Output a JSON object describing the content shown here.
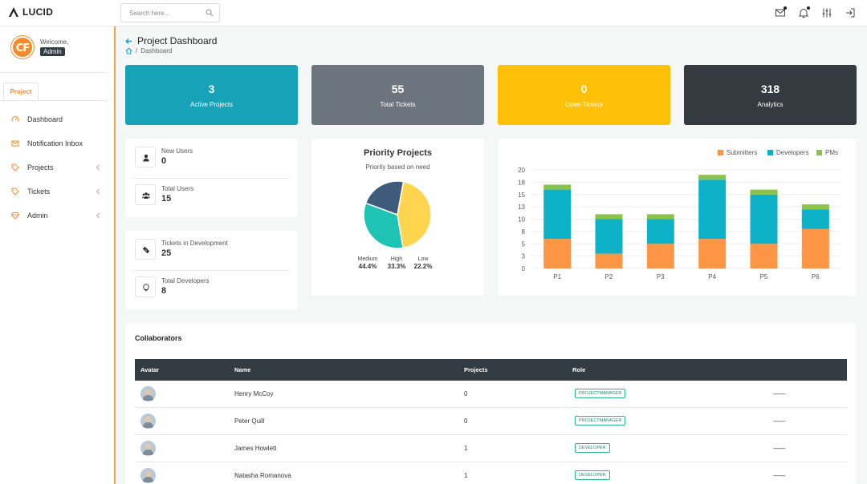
{
  "brand": {
    "name": "LUCID"
  },
  "search": {
    "placeholder": "Search here..."
  },
  "navbar_icons": [
    "mail-icon",
    "bell-icon",
    "sliders-icon",
    "logout-icon"
  ],
  "user": {
    "welcome": "Welcome,",
    "role": "Admin",
    "avatar_text": "CF"
  },
  "sidebar": {
    "tab": "Project",
    "items": [
      {
        "label": "Dashboard",
        "icon": "speedometer-icon"
      },
      {
        "label": "Notification Inbox",
        "icon": "mail-icon"
      },
      {
        "label": "Projects",
        "icon": "tag-icon"
      },
      {
        "label": "Tickets",
        "icon": "tag-icon"
      },
      {
        "label": "Admin",
        "icon": "diamond-icon"
      }
    ]
  },
  "page": {
    "title": "Project Dashboard",
    "breadcrumb": "Dashboard"
  },
  "tiles": [
    {
      "value": "3",
      "label": "Active Projects",
      "color": "#17a2b8"
    },
    {
      "value": "55",
      "label": "Total Tickets",
      "color": "#6c757d"
    },
    {
      "value": "0",
      "label": "Open Tickets",
      "color": "#ffc107"
    },
    {
      "value": "318",
      "label": "Analytics",
      "color": "#343a40"
    }
  ],
  "users_card": [
    {
      "label": "New Users",
      "value": "0",
      "icon": "user-icon"
    },
    {
      "label": "Total Users",
      "value": "15",
      "icon": "users-icon"
    }
  ],
  "dev_card": [
    {
      "label": "Tickets in Development",
      "value": "25",
      "icon": "ticket-icon"
    },
    {
      "label": "Total Developers",
      "value": "8",
      "icon": "lightbulb-icon"
    }
  ],
  "pie": {
    "title": "Priority Projects",
    "subtitle": "Priority based on need",
    "labels": [
      "Medium",
      "High",
      "Low"
    ],
    "display": [
      "44.4%",
      "33.3%",
      "22.2%"
    ],
    "values": [
      44.4,
      33.3,
      22.2
    ],
    "colors": [
      "#ffd54f",
      "#1fc3b6",
      "#3f5a7a"
    ]
  },
  "chart_data": {
    "type": "bar",
    "stacked": true,
    "categories": [
      "P1",
      "P2",
      "P3",
      "P4",
      "P5",
      "P6"
    ],
    "series": [
      {
        "name": "Submitters",
        "color": "#fd9644",
        "values": [
          6,
          3,
          5,
          6,
          5,
          8
        ]
      },
      {
        "name": "Developers",
        "color": "#0eb2c8",
        "values": [
          10,
          7,
          5,
          12,
          10,
          4
        ]
      },
      {
        "name": "PMs",
        "color": "#8bc34a",
        "values": [
          1,
          1,
          1,
          1,
          1,
          1
        ]
      }
    ],
    "yticks": [
      "20",
      "18",
      "15",
      "13",
      "10",
      "8",
      "5",
      "3",
      "0"
    ],
    "ylim": [
      0,
      20
    ],
    "legend": "top-right",
    "grid": true
  },
  "collaborators": {
    "title": "Collaborators",
    "headers": [
      "Avatar",
      "Name",
      "Projects",
      "Role"
    ],
    "rows": [
      {
        "name": "Henry McCoy",
        "projects": "0",
        "role": "PROJECTMANAGER",
        "extra": "-------"
      },
      {
        "name": "Peter Quill",
        "projects": "0",
        "role": "PROJECTMANAGER",
        "extra": "-------"
      },
      {
        "name": "James Howlett",
        "projects": "1",
        "role": "DEVELOPER",
        "extra": "-------"
      },
      {
        "name": "Natasha Romanova",
        "projects": "1",
        "role": "DEVELOPER",
        "extra": "-------"
      }
    ]
  }
}
